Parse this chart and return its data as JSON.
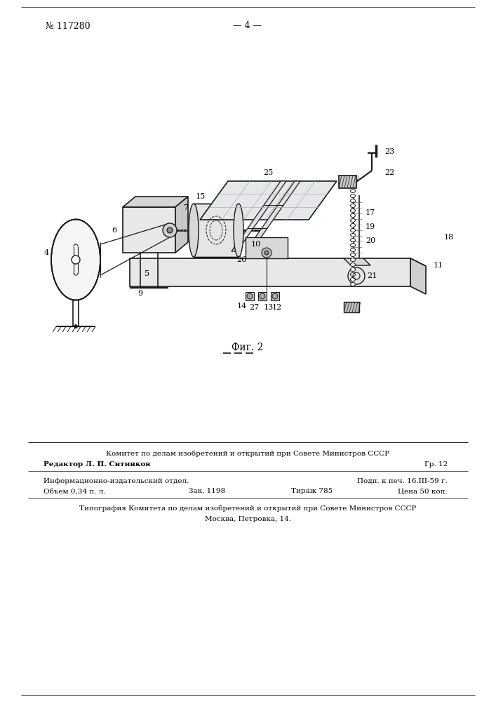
{
  "page_number": "— 4 —",
  "patent_number": "№ 117280",
  "figure_caption": "Фиг. 2",
  "footer_line1": "Комитет по делам изобретений и открытий при Совете Министров СССР",
  "footer_line2": "Редактор Л. П. Ситников",
  "footer_line2_right": "Гр. 12",
  "footer_line3_left": "Информационно-издательский отдел.",
  "footer_line3_right": "Подп. к печ. 16.III-59 г.",
  "footer_line4_left": "Объем 0,34 п. л.",
  "footer_line4_mid1": "Зак. 1198",
  "footer_line4_mid2": "Тираж 785",
  "footer_line4_right": "Цена 50 коп.",
  "footer_line5": "Типография Комитета по делам изобретений и открытий при Совете Министров СССР",
  "footer_line6": "Москва, Петровка, 14.",
  "bg_color": "#ffffff",
  "dc": "#1a1a1a"
}
